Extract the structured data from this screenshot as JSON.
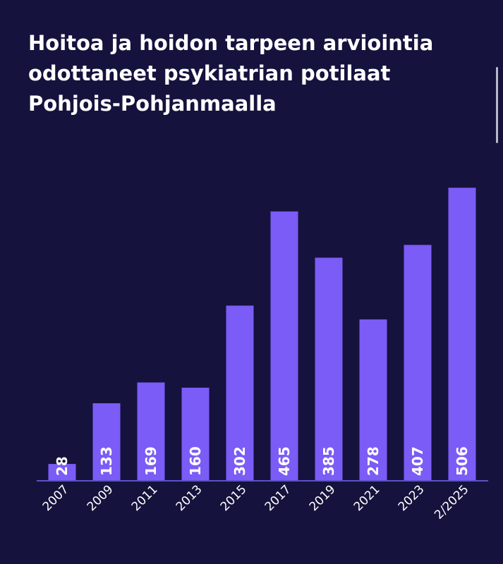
{
  "title_lines": [
    "Hoitoa ja hoidon tarpeen arviointia",
    "odottaneet psykiatrian potilaat",
    "Pohjois-Pohjanmaalla"
  ],
  "colors": {
    "background": "#15123d",
    "bar": "#7b5cf6",
    "axis": "#5b52c7",
    "text": "#ffffff"
  },
  "chart_data": {
    "type": "bar",
    "title": "Hoitoa ja hoidon tarpeen arviointia odottaneet psykiatrian potilaat Pohjois-Pohjanmaalla",
    "categories": [
      "2007",
      "2009",
      "2011",
      "2013",
      "2015",
      "2017",
      "2019",
      "2021",
      "2023",
      "2/2025"
    ],
    "values": [
      28,
      133,
      169,
      160,
      302,
      465,
      385,
      278,
      407,
      506
    ],
    "xlabel": "",
    "ylabel": "",
    "ylim": [
      0,
      510
    ],
    "grid": false,
    "legend": "none"
  }
}
